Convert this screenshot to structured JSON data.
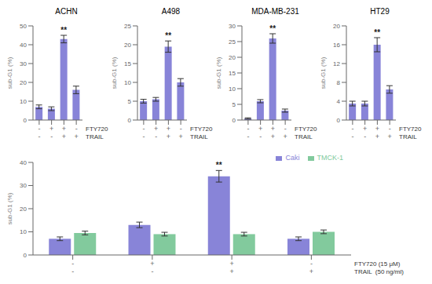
{
  "chart_data": [
    {
      "type": "bar",
      "title": "ACHN",
      "ylabel": "sub-G1 (%)",
      "xlabel": [
        "FTY720",
        "TRAIL"
      ],
      "categories": [
        [
          "-",
          "-"
        ],
        [
          "+",
          "-"
        ],
        [
          "+",
          "+"
        ],
        [
          "-",
          "+"
        ]
      ],
      "values": [
        7,
        6,
        43,
        16
      ],
      "errors": [
        1,
        1,
        2,
        2
      ],
      "color": "#8884d8",
      "ylim": [
        0,
        50
      ],
      "yticks": [
        0,
        10,
        20,
        30,
        40,
        50
      ],
      "annotations": [
        {
          "text": "**",
          "category": 2
        }
      ]
    },
    {
      "type": "bar",
      "title": "A498",
      "ylabel": "sub-G1 (%)",
      "xlabel": [
        "FTY720",
        "TRAIL"
      ],
      "categories": [
        [
          "-",
          "-"
        ],
        [
          "+",
          "-"
        ],
        [
          "+",
          "+"
        ],
        [
          "-",
          "+"
        ]
      ],
      "values": [
        5,
        5.5,
        19.5,
        10
      ],
      "errors": [
        0.5,
        0.5,
        1.5,
        1
      ],
      "color": "#8884d8",
      "ylim": [
        0,
        25
      ],
      "yticks": [
        0,
        5,
        10,
        15,
        20,
        25
      ],
      "annotations": [
        {
          "text": "**",
          "category": 2
        }
      ]
    },
    {
      "type": "bar",
      "title": "MDA-MB-231",
      "ylabel": "sub-G1 (%)",
      "xlabel": [
        "FTY720",
        "TRAIL"
      ],
      "categories": [
        [
          "-",
          "-"
        ],
        [
          "+",
          "-"
        ],
        [
          "+",
          "+"
        ],
        [
          "-",
          "+"
        ]
      ],
      "values": [
        0.5,
        6,
        26,
        3
      ],
      "errors": [
        0.2,
        0.5,
        1.5,
        0.5
      ],
      "color": "#8884d8",
      "ylim": [
        0,
        30
      ],
      "yticks": [
        0,
        5,
        10,
        15,
        20,
        25,
        30
      ],
      "annotations": [
        {
          "text": "**",
          "category": 2
        }
      ]
    },
    {
      "type": "bar",
      "title": "HT29",
      "ylabel": "sub-G1 (%)",
      "xlabel": [
        "FTY720",
        "TRAIL"
      ],
      "categories": [
        [
          "-",
          "-"
        ],
        [
          "+",
          "-"
        ],
        [
          "+",
          "+"
        ],
        [
          "-",
          "+"
        ]
      ],
      "values": [
        3.5,
        3.5,
        16,
        6.5
      ],
      "errors": [
        0.5,
        0.5,
        1.5,
        0.8
      ],
      "color": "#8884d8",
      "ylim": [
        0,
        20
      ],
      "yticks": [
        0,
        4,
        8,
        12,
        16,
        20
      ],
      "annotations": [
        {
          "text": "**",
          "category": 2
        }
      ]
    },
    {
      "type": "bar",
      "ylabel": "sub-G1 (%)",
      "xlabel": [
        "FTY720 (15 μM)",
        "TRAIL  (50 ng/ml)"
      ],
      "categories": [
        [
          "-",
          "-"
        ],
        [
          "+",
          "-"
        ],
        [
          "+",
          "+"
        ],
        [
          "-",
          "+"
        ]
      ],
      "series": [
        {
          "name": "Caki",
          "color": "#8884d8",
          "values": [
            7,
            13,
            34,
            7
          ],
          "errors": [
            0.8,
            1.2,
            2.5,
            0.8
          ]
        },
        {
          "name": "TMCK-1",
          "color": "#82ca9d",
          "values": [
            9.5,
            9,
            9,
            10
          ],
          "errors": [
            0.8,
            0.8,
            0.8,
            0.8
          ]
        }
      ],
      "legend": "upper right",
      "ylim": [
        0,
        40
      ],
      "yticks": [
        0,
        10,
        20,
        30,
        40
      ],
      "annotations": [
        {
          "text": "**",
          "category": 2,
          "series": "Caki"
        }
      ]
    }
  ]
}
